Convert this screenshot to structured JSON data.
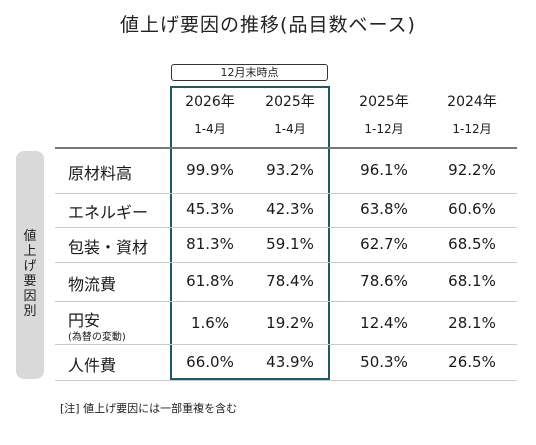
{
  "title": "値上げ要因の推移(品目数ベース)",
  "badge": "12月末時点",
  "sidebar_label": "値上げ要因別",
  "columns": [
    {
      "year": "2026年",
      "period": "1-4月"
    },
    {
      "year": "2025年",
      "period": "1-4月"
    },
    {
      "year": "2025年",
      "period": "1-12月"
    },
    {
      "year": "2024年",
      "period": "1-12月"
    }
  ],
  "rows": [
    {
      "label": "原材料高",
      "sub": "",
      "values": [
        "99.9%",
        "93.2%",
        "96.1%",
        "92.2%"
      ]
    },
    {
      "label": "エネルギー",
      "sub": "",
      "values": [
        "45.3%",
        "42.3%",
        "63.8%",
        "60.6%"
      ]
    },
    {
      "label": "包装・資材",
      "sub": "",
      "values": [
        "81.3%",
        "59.1%",
        "62.7%",
        "68.5%"
      ]
    },
    {
      "label": "物流費",
      "sub": "",
      "values": [
        "61.8%",
        "78.4%",
        "78.6%",
        "68.1%"
      ]
    },
    {
      "label": "円安",
      "sub": "(為替の変動)",
      "values": [
        "1.6%",
        "19.2%",
        "12.4%",
        "28.1%"
      ]
    },
    {
      "label": "人件費",
      "sub": "",
      "values": [
        "66.0%",
        "43.9%",
        "50.3%",
        "26.5%"
      ]
    }
  ],
  "note": "[注] 値上げ要因には一部重複を含む"
}
